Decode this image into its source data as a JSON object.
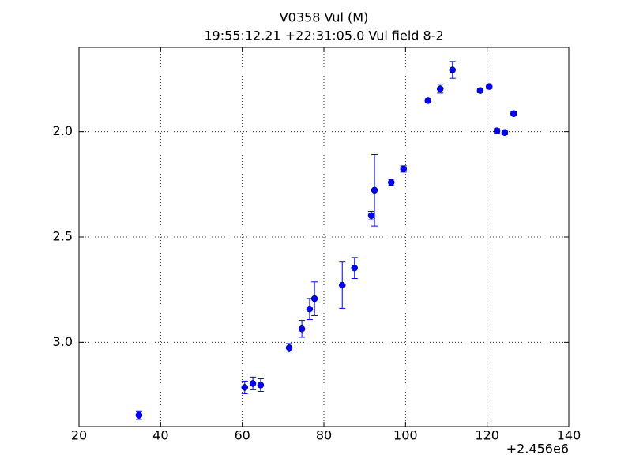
{
  "chart_data": {
    "type": "errorbar_scatter",
    "title": "V0358 Vul (M)",
    "subtitle": "19:55:12.21 +22:31:05.0 Vul field 8-2",
    "x": [
      34.7,
      60.6,
      62.6,
      64.5,
      71.5,
      74.6,
      76.5,
      77.7,
      84.5,
      87.5,
      91.6,
      92.4,
      96.5,
      99.5,
      105.5,
      108.5,
      111.5,
      118.3,
      120.5,
      122.4,
      124.3,
      126.5
    ],
    "values": [
      3.346,
      3.214,
      3.195,
      3.203,
      3.026,
      2.936,
      2.842,
      2.793,
      2.729,
      2.647,
      2.398,
      2.278,
      2.241,
      2.177,
      1.853,
      1.797,
      1.707,
      1.805,
      1.786,
      1.996,
      2.004,
      1.914
    ],
    "errors": [
      0.02,
      0.03,
      0.03,
      0.03,
      0.02,
      0.04,
      0.05,
      0.08,
      0.11,
      0.05,
      0.02,
      0.17,
      0.015,
      0.015,
      0.01,
      0.02,
      0.04,
      0.01,
      0.01,
      0.01,
      0.01,
      0.01
    ],
    "color": "#0000ff",
    "xlim": [
      20,
      140
    ],
    "xticks": [
      20,
      40,
      60,
      80,
      100,
      120,
      140
    ],
    "x_offset_label": "+2.456e6",
    "ylim": [
      3.4,
      1.6
    ],
    "yticks": [
      {
        "value": 2.0,
        "label": "2.0"
      },
      {
        "value": 2.5,
        "label": "2.5"
      },
      {
        "value": 3.0,
        "label": "3.0"
      }
    ],
    "grid": true
  }
}
